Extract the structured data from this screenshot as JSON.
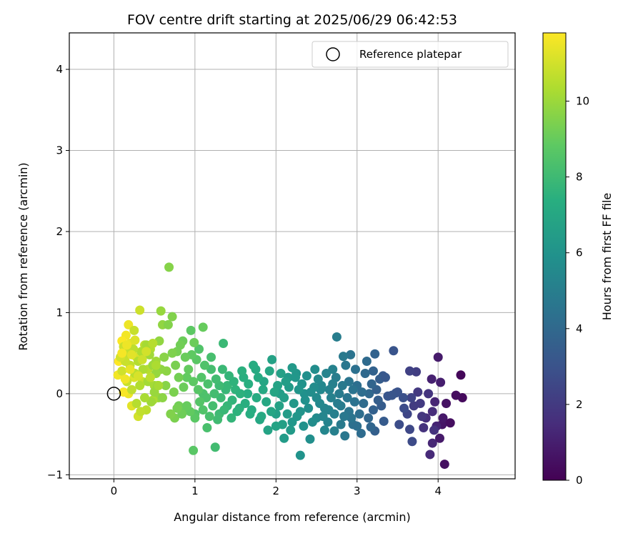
{
  "chart_data": {
    "type": "scatter",
    "title": "FOV centre drift starting at 2025/06/29 06:42:53",
    "xlabel": "Angular distance from reference (arcmin)",
    "ylabel": "Rotation from reference (arcmin)",
    "xlim": [
      -0.55,
      4.95
    ],
    "ylim": [
      -1.05,
      4.45
    ],
    "xticks": [
      0,
      1,
      2,
      3,
      4
    ],
    "yticks": [
      -1,
      0,
      1,
      2,
      3,
      4
    ],
    "xtick_labels": [
      "0",
      "1",
      "2",
      "3",
      "4"
    ],
    "ytick_labels": [
      "−1",
      "0",
      "1",
      "2",
      "3",
      "4"
    ],
    "grid": true,
    "legend": {
      "position": "top-right",
      "entries": [
        "Reference platepar"
      ]
    },
    "reference_point": {
      "x": 0,
      "y": 0,
      "label": "Reference platepar"
    },
    "colorbar": {
      "label": "Hours from first FF file",
      "colormap": "viridis",
      "min": 0,
      "max": 11.8,
      "ticks": [
        0,
        2,
        4,
        6,
        8,
        10
      ],
      "tick_labels": [
        "0",
        "2",
        "4",
        "6",
        "8",
        "10"
      ]
    },
    "points_xyt": [
      [
        4.28,
        0.23,
        0.2
      ],
      [
        4.3,
        -0.05,
        0.3
      ],
      [
        4.22,
        -0.02,
        0.4
      ],
      [
        4.08,
        -0.87,
        0.5
      ],
      [
        4.1,
        -0.12,
        0.6
      ],
      [
        4.05,
        -0.38,
        0.7
      ],
      [
        4.06,
        -0.3,
        0.8
      ],
      [
        4.0,
        0.45,
        0.9
      ],
      [
        4.03,
        0.14,
        1.0
      ],
      [
        3.92,
        0.18,
        1.1
      ],
      [
        3.98,
        -0.4,
        1.2
      ],
      [
        3.93,
        -0.61,
        1.3
      ],
      [
        3.9,
        -0.75,
        1.4
      ],
      [
        3.93,
        -0.22,
        1.5
      ],
      [
        3.85,
        -0.3,
        1.6
      ],
      [
        3.95,
        -0.45,
        1.7
      ],
      [
        3.88,
        0.0,
        1.8
      ],
      [
        3.8,
        -0.28,
        1.9
      ],
      [
        3.75,
        0.02,
        2.0
      ],
      [
        3.7,
        -0.15,
        2.1
      ],
      [
        3.73,
        0.27,
        2.2
      ],
      [
        3.65,
        0.28,
        2.3
      ],
      [
        3.67,
        -0.05,
        2.4
      ],
      [
        3.62,
        -0.25,
        2.5
      ],
      [
        3.65,
        -0.44,
        2.6
      ],
      [
        3.68,
        -0.59,
        2.7
      ],
      [
        3.52,
        -0.38,
        2.8
      ],
      [
        3.57,
        -0.05,
        2.9
      ],
      [
        3.48,
        0.01,
        3.0
      ],
      [
        3.45,
        0.53,
        3.1
      ],
      [
        3.38,
        -0.03,
        3.2
      ],
      [
        3.32,
        0.22,
        3.3
      ],
      [
        3.33,
        -0.34,
        3.4
      ],
      [
        3.28,
        0.18,
        3.5
      ],
      [
        3.22,
        -0.46,
        3.6
      ],
      [
        3.2,
        -0.2,
        3.7
      ],
      [
        3.22,
        0.49,
        3.8
      ],
      [
        3.17,
        -0.41,
        3.9
      ],
      [
        3.15,
        0.0,
        4.0
      ],
      [
        3.12,
        0.4,
        4.1
      ],
      [
        3.05,
        -0.49,
        4.2
      ],
      [
        3.0,
        0.1,
        4.3
      ],
      [
        2.95,
        -0.38,
        4.4
      ],
      [
        2.92,
        0.48,
        4.5
      ],
      [
        2.9,
        -0.22,
        4.6
      ],
      [
        2.85,
        -0.52,
        4.7
      ],
      [
        2.83,
        0.46,
        4.8
      ],
      [
        2.8,
        -0.15,
        4.9
      ],
      [
        2.75,
        0.7,
        5.0
      ],
      [
        2.72,
        -0.46,
        5.1
      ],
      [
        2.7,
        0.3,
        5.2
      ],
      [
        2.65,
        -0.2,
        5.3
      ],
      [
        2.6,
        -0.45,
        5.4
      ],
      [
        2.55,
        0.05,
        5.5
      ],
      [
        2.5,
        -0.3,
        5.6
      ],
      [
        2.48,
        0.3,
        5.7
      ],
      [
        2.42,
        -0.56,
        5.8
      ],
      [
        2.35,
        0.0,
        5.9
      ],
      [
        2.3,
        -0.76,
        6.0
      ],
      [
        2.25,
        0.25,
        6.1
      ],
      [
        2.2,
        -0.35,
        6.2
      ],
      [
        2.15,
        0.2,
        6.3
      ],
      [
        2.1,
        -0.55,
        6.4
      ],
      [
        2.05,
        0.0,
        6.5
      ],
      [
        2.0,
        -0.25,
        6.6
      ],
      [
        1.95,
        0.42,
        6.7
      ],
      [
        1.9,
        -0.45,
        6.8
      ],
      [
        1.85,
        0.15,
        6.9
      ],
      [
        1.8,
        -0.32,
        7.0
      ],
      [
        1.75,
        0.3,
        7.1
      ],
      [
        1.7,
        -0.2,
        7.2
      ],
      [
        1.65,
        0.0,
        7.3
      ],
      [
        1.6,
        0.2,
        7.4
      ],
      [
        1.55,
        -0.18,
        7.5
      ],
      [
        1.5,
        0.05,
        7.6
      ],
      [
        1.45,
        -0.3,
        7.7
      ],
      [
        1.4,
        0.1,
        7.8
      ],
      [
        1.35,
        0.62,
        7.9
      ],
      [
        1.3,
        -0.25,
        8.0
      ],
      [
        1.25,
        -0.66,
        8.1
      ],
      [
        1.2,
        0.3,
        8.2
      ],
      [
        1.15,
        -0.42,
        8.3
      ],
      [
        1.1,
        0.0,
        8.4
      ],
      [
        1.05,
        0.55,
        8.5
      ],
      [
        1.0,
        -0.25,
        8.6
      ],
      [
        0.98,
        -0.7,
        8.7
      ],
      [
        0.95,
        0.78,
        8.8
      ],
      [
        0.9,
        0.2,
        8.9
      ],
      [
        0.88,
        -0.2,
        9.0
      ],
      [
        0.85,
        0.65,
        9.1
      ],
      [
        0.8,
        -0.15,
        9.2
      ],
      [
        0.78,
        0.52,
        9.3
      ],
      [
        0.75,
        -0.3,
        9.4
      ],
      [
        0.72,
        0.95,
        9.5
      ],
      [
        0.68,
        1.56,
        9.6
      ],
      [
        0.65,
        0.28,
        9.7
      ],
      [
        0.6,
        0.85,
        9.8
      ],
      [
        0.58,
        1.02,
        9.9
      ],
      [
        0.55,
        -0.05,
        10.0
      ],
      [
        0.52,
        0.4,
        10.1
      ],
      [
        0.5,
        0.1,
        10.2
      ],
      [
        0.48,
        -0.08,
        10.3
      ],
      [
        0.45,
        0.55,
        10.4
      ],
      [
        0.42,
        0.3,
        10.5
      ],
      [
        0.4,
        -0.2,
        10.6
      ],
      [
        0.38,
        0.6,
        10.7
      ],
      [
        0.35,
        0.15,
        10.8
      ],
      [
        0.32,
        1.03,
        10.9
      ],
      [
        0.3,
        -0.28,
        11.0
      ],
      [
        0.28,
        0.45,
        11.1
      ],
      [
        0.25,
        0.2,
        11.2
      ],
      [
        0.22,
        -0.15,
        11.3
      ],
      [
        0.2,
        0.62,
        11.4
      ],
      [
        0.18,
        0.0,
        11.5
      ],
      [
        0.15,
        0.72,
        11.6
      ],
      [
        0.12,
        0.02,
        11.7
      ],
      [
        0.1,
        0.65,
        11.75
      ],
      [
        0.06,
        0.4,
        11.8
      ],
      [
        0.05,
        0.23,
        11.6
      ],
      [
        0.18,
        0.85,
        11.5
      ],
      [
        4.15,
        -0.36,
        0.45
      ],
      [
        4.02,
        -0.55,
        0.85
      ],
      [
        3.96,
        -0.1,
        1.25
      ],
      [
        3.82,
        -0.42,
        1.75
      ],
      [
        3.78,
        -0.12,
        2.05
      ],
      [
        3.58,
        -0.18,
        2.75
      ],
      [
        3.5,
        0.02,
        3.05
      ],
      [
        3.43,
        -0.02,
        3.15
      ],
      [
        3.35,
        0.2,
        3.25
      ],
      [
        3.3,
        -0.15,
        3.45
      ],
      [
        3.26,
        -0.08,
        3.55
      ],
      [
        3.24,
        0.05,
        3.65
      ],
      [
        3.2,
        0.28,
        3.75
      ],
      [
        3.18,
        0.12,
        3.85
      ],
      [
        3.14,
        -0.3,
        3.95
      ],
      [
        3.1,
        0.25,
        4.05
      ],
      [
        3.08,
        -0.12,
        4.15
      ],
      [
        3.06,
        0.02,
        4.25
      ],
      [
        3.03,
        -0.25,
        4.3
      ],
      [
        3.0,
        -0.4,
        4.35
      ],
      [
        2.98,
        0.3,
        4.4
      ],
      [
        2.97,
        -0.1,
        4.45
      ],
      [
        2.95,
        0.05,
        4.5
      ],
      [
        2.93,
        -0.3,
        4.55
      ],
      [
        2.9,
        0.15,
        4.6
      ],
      [
        2.88,
        -0.05,
        4.65
      ],
      [
        2.86,
        0.35,
        4.7
      ],
      [
        2.84,
        -0.28,
        4.75
      ],
      [
        2.82,
        0.1,
        4.8
      ],
      [
        2.8,
        -0.38,
        4.85
      ],
      [
        2.78,
        0.0,
        4.9
      ],
      [
        2.76,
        -0.12,
        4.95
      ],
      [
        2.74,
        0.2,
        5.0
      ],
      [
        2.72,
        -0.25,
        5.05
      ],
      [
        2.7,
        0.12,
        5.1
      ],
      [
        2.68,
        -0.05,
        5.15
      ],
      [
        2.66,
        0.05,
        5.2
      ],
      [
        2.64,
        -0.35,
        5.25
      ],
      [
        2.62,
        0.25,
        5.3
      ],
      [
        2.6,
        -0.18,
        5.35
      ],
      [
        2.58,
        -0.28,
        5.4
      ],
      [
        2.56,
        0.1,
        5.45
      ],
      [
        2.54,
        -0.12,
        5.5
      ],
      [
        2.52,
        0.18,
        5.55
      ],
      [
        2.5,
        -0.05,
        5.6
      ],
      [
        2.47,
        0.08,
        5.65
      ],
      [
        2.45,
        -0.35,
        5.7
      ],
      [
        2.43,
        0.02,
        5.75
      ],
      [
        2.4,
        -0.18,
        5.8
      ],
      [
        2.38,
        0.22,
        5.85
      ],
      [
        2.36,
        -0.08,
        5.9
      ],
      [
        2.34,
        -0.4,
        5.95
      ],
      [
        2.32,
        0.12,
        6.0
      ],
      [
        2.3,
        -0.22,
        6.05
      ],
      [
        2.28,
        0.05,
        6.1
      ],
      [
        2.26,
        -0.28,
        6.15
      ],
      [
        2.24,
        0.2,
        6.2
      ],
      [
        2.22,
        -0.12,
        6.25
      ],
      [
        2.2,
        0.32,
        6.3
      ],
      [
        2.18,
        -0.45,
        6.35
      ],
      [
        2.16,
        0.08,
        6.4
      ],
      [
        2.14,
        -0.25,
        6.45
      ],
      [
        2.12,
        0.15,
        6.5
      ],
      [
        2.1,
        -0.05,
        6.55
      ],
      [
        2.08,
        -0.38,
        6.6
      ],
      [
        2.06,
        0.25,
        6.65
      ],
      [
        2.04,
        -0.15,
        6.7
      ],
      [
        2.02,
        0.1,
        6.75
      ],
      [
        2.0,
        -0.4,
        6.8
      ],
      [
        1.98,
        0.02,
        6.85
      ],
      [
        1.94,
        -0.22,
        6.9
      ],
      [
        1.92,
        0.28,
        6.95
      ],
      [
        1.88,
        -0.1,
        7.0
      ],
      [
        1.84,
        0.05,
        7.05
      ],
      [
        1.82,
        -0.28,
        7.1
      ],
      [
        1.78,
        0.2,
        7.15
      ],
      [
        1.76,
        -0.05,
        7.2
      ],
      [
        1.72,
        0.35,
        7.25
      ],
      [
        1.68,
        -0.25,
        7.3
      ],
      [
        1.66,
        0.12,
        7.35
      ],
      [
        1.62,
        -0.12,
        7.4
      ],
      [
        1.58,
        0.28,
        7.45
      ],
      [
        1.56,
        0.0,
        7.5
      ],
      [
        1.52,
        -0.22,
        7.55
      ],
      [
        1.48,
        0.15,
        7.6
      ],
      [
        1.46,
        -0.08,
        7.65
      ],
      [
        1.42,
        0.22,
        7.7
      ],
      [
        1.4,
        -0.15,
        7.75
      ],
      [
        1.38,
        0.05,
        7.8
      ],
      [
        1.36,
        -0.2,
        7.85
      ],
      [
        1.34,
        0.3,
        7.9
      ],
      [
        1.32,
        -0.05,
        7.95
      ],
      [
        1.3,
        0.1,
        8.0
      ],
      [
        1.28,
        -0.32,
        8.05
      ],
      [
        1.26,
        0.18,
        8.1
      ],
      [
        1.24,
        0.0,
        8.15
      ],
      [
        1.22,
        -0.15,
        8.2
      ],
      [
        1.2,
        0.45,
        8.25
      ],
      [
        1.18,
        -0.28,
        8.3
      ],
      [
        1.16,
        0.12,
        8.35
      ],
      [
        1.14,
        -0.05,
        8.4
      ],
      [
        1.12,
        0.35,
        8.45
      ],
      [
        1.1,
        -0.2,
        8.5
      ],
      [
        1.08,
        0.2,
        8.55
      ],
      [
        1.06,
        -0.1,
        8.6
      ],
      [
        1.04,
        0.05,
        8.65
      ],
      [
        1.02,
        0.42,
        8.7
      ],
      [
        1.0,
        -0.3,
        8.75
      ],
      [
        0.98,
        0.15,
        8.8
      ],
      [
        0.96,
        0.48,
        8.85
      ],
      [
        0.94,
        -0.22,
        8.9
      ],
      [
        0.92,
        0.3,
        8.95
      ],
      [
        0.9,
        -0.15,
        9.0
      ],
      [
        0.88,
        0.45,
        9.05
      ],
      [
        0.86,
        0.08,
        9.1
      ],
      [
        0.84,
        -0.25,
        9.15
      ],
      [
        0.82,
        0.6,
        9.2
      ],
      [
        0.8,
        0.2,
        9.25
      ],
      [
        0.78,
        -0.18,
        9.3
      ],
      [
        0.76,
        0.35,
        9.35
      ],
      [
        0.74,
        0.02,
        9.4
      ],
      [
        0.72,
        0.5,
        9.45
      ],
      [
        0.7,
        -0.25,
        9.5
      ],
      [
        0.67,
        0.85,
        9.55
      ],
      [
        0.64,
        0.1,
        9.6
      ],
      [
        0.62,
        0.45,
        9.65
      ],
      [
        0.6,
        -0.05,
        9.7
      ],
      [
        0.58,
        0.3,
        9.75
      ],
      [
        0.56,
        0.65,
        9.8
      ],
      [
        0.54,
        0.1,
        9.85
      ],
      [
        0.52,
        0.25,
        9.9
      ],
      [
        0.5,
        0.02,
        9.95
      ],
      [
        0.48,
        0.35,
        10.0
      ],
      [
        0.46,
        -0.1,
        10.05
      ],
      [
        0.44,
        0.48,
        10.1
      ],
      [
        0.42,
        0.15,
        10.15
      ],
      [
        0.4,
        0.6,
        10.2
      ],
      [
        0.38,
        -0.05,
        10.25
      ],
      [
        0.36,
        0.3,
        10.3
      ],
      [
        0.34,
        0.52,
        10.35
      ],
      [
        0.32,
        0.1,
        10.4
      ],
      [
        0.3,
        0.4,
        10.45
      ],
      [
        0.28,
        -0.12,
        10.5
      ],
      [
        0.26,
        0.25,
        10.55
      ],
      [
        0.24,
        0.55,
        10.6
      ],
      [
        0.22,
        0.05,
        10.65
      ],
      [
        0.2,
        0.35,
        10.7
      ],
      [
        0.18,
        0.5,
        10.75
      ],
      [
        0.16,
        0.15,
        10.8
      ],
      [
        0.14,
        0.4,
        10.85
      ],
      [
        0.12,
        0.58,
        10.9
      ],
      [
        0.1,
        0.28,
        10.95
      ],
      [
        0.08,
        0.45,
        11.0
      ],
      [
        0.3,
        0.22,
        11.1
      ],
      [
        0.26,
        0.66,
        11.2
      ],
      [
        0.22,
        0.48,
        11.3
      ],
      [
        0.2,
        0.3,
        11.4
      ],
      [
        0.16,
        0.6,
        11.5
      ],
      [
        0.14,
        0.18,
        11.55
      ],
      [
        0.1,
        0.5,
        11.65
      ],
      [
        0.35,
        0.42,
        10.9
      ],
      [
        0.4,
        0.52,
        11.0
      ],
      [
        0.25,
        0.78,
        10.8
      ],
      [
        0.33,
        -0.22,
        10.7
      ],
      [
        0.45,
        0.2,
        10.6
      ],
      [
        0.48,
        0.62,
        10.5
      ],
      [
        0.52,
        0.35,
        10.3
      ],
      [
        0.55,
        0.1,
        10.2
      ],
      [
        1.1,
        0.82,
        9.0
      ],
      [
        0.99,
        0.63,
        9.1
      ]
    ]
  }
}
